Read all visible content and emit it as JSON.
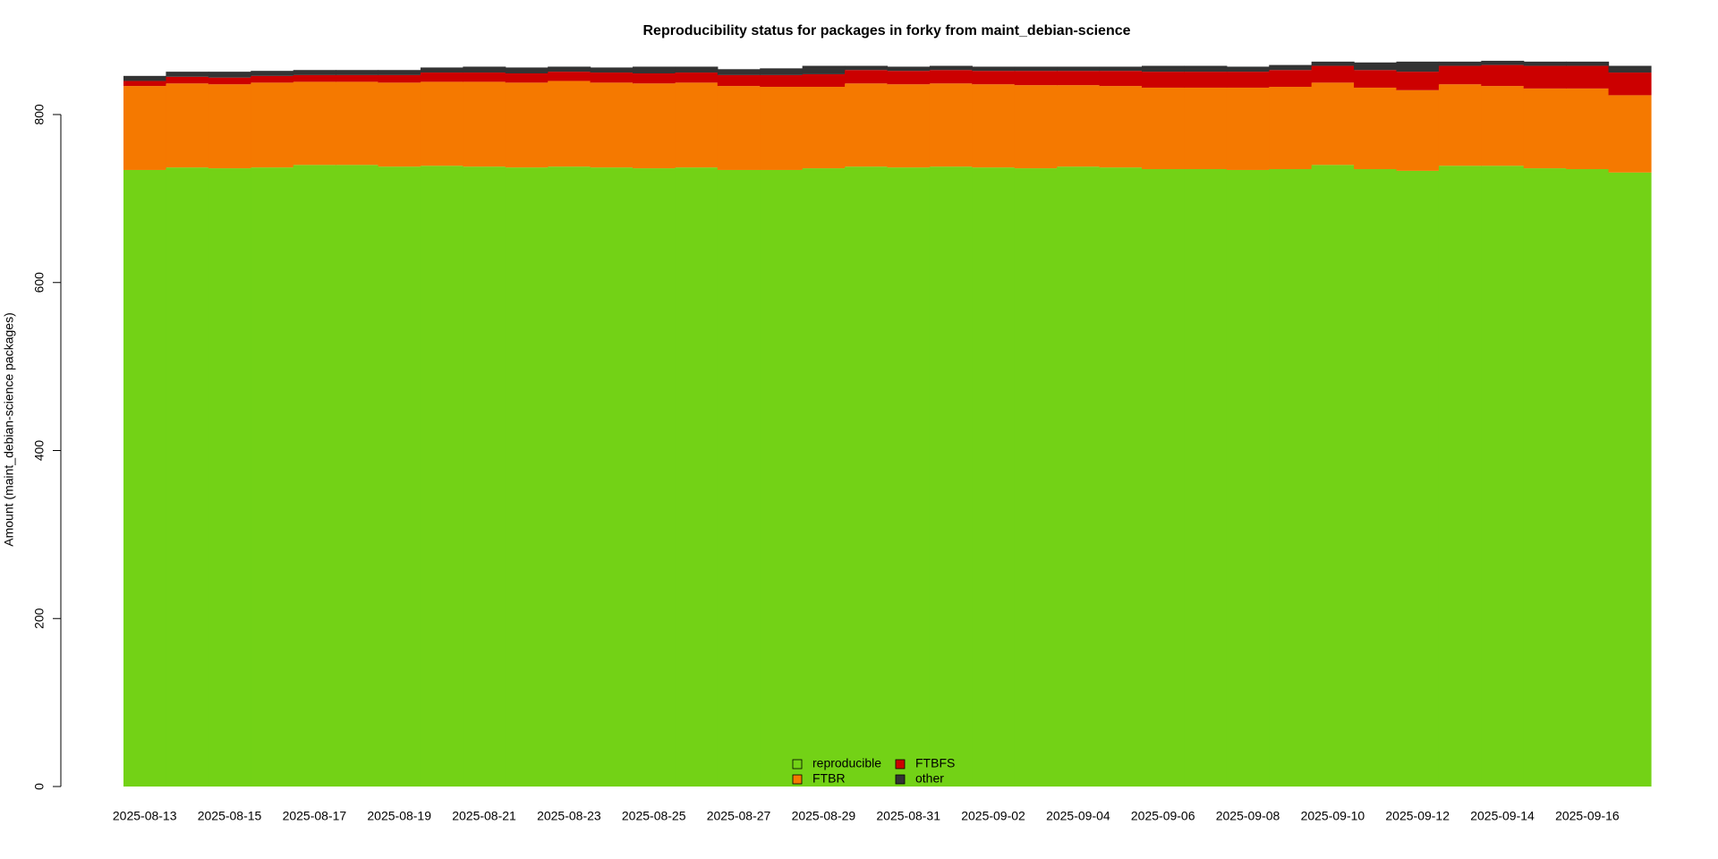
{
  "chart_data": {
    "type": "stacked-step-area",
    "title": "Reproducibility status for packages in forky from maint_debian-science",
    "y_label": "Amount (maint_debian-science packages)",
    "categories": [
      "2025-08-13",
      null,
      "2025-08-15",
      null,
      "2025-08-17",
      null,
      "2025-08-19",
      null,
      "2025-08-21",
      null,
      "2025-08-23",
      null,
      "2025-08-25",
      null,
      "2025-08-27",
      null,
      "2025-08-29",
      null,
      "2025-08-31",
      null,
      "2025-09-02",
      null,
      "2025-09-04",
      null,
      "2025-09-06",
      null,
      "2025-09-08",
      null,
      "2025-09-10",
      null,
      "2025-09-12",
      null,
      "2025-09-14",
      null,
      "2025-09-16",
      null
    ],
    "series": [
      {
        "name": "reproducible",
        "color": "#73d216",
        "values": [
          734,
          737,
          736,
          737,
          740,
          740,
          738,
          739,
          738,
          737,
          738,
          737,
          736,
          737,
          734,
          734,
          736,
          738,
          737,
          738,
          737,
          736,
          738,
          737,
          735,
          735,
          734,
          735,
          740,
          735,
          733,
          739,
          739,
          736,
          735,
          731
        ]
      },
      {
        "name": "FTBR",
        "color": "#f57900",
        "values": [
          100,
          100,
          100,
          101,
          99,
          99,
          100,
          100,
          101,
          101,
          102,
          101,
          101,
          101,
          100,
          99,
          97,
          99,
          99,
          99,
          99,
          99,
          97,
          97,
          97,
          97,
          98,
          98,
          98,
          97,
          96,
          97,
          95,
          95,
          96,
          92
        ]
      },
      {
        "name": "FTBFS",
        "color": "#cc0000",
        "values": [
          6,
          8,
          8,
          8,
          8,
          8,
          9,
          11,
          11,
          11,
          11,
          12,
          12,
          12,
          13,
          14,
          15,
          16,
          16,
          16,
          16,
          17,
          17,
          18,
          19,
          19,
          19,
          20,
          20,
          21,
          22,
          22,
          25,
          27,
          27,
          27
        ]
      },
      {
        "name": "other",
        "color": "#333333",
        "values": [
          6,
          6,
          7,
          6,
          6,
          6,
          6,
          6,
          7,
          7,
          6,
          6,
          8,
          7,
          7,
          8,
          10,
          5,
          5,
          5,
          5,
          5,
          5,
          5,
          7,
          7,
          6,
          6,
          5,
          9,
          12,
          5,
          5,
          5,
          5,
          8
        ]
      }
    ],
    "ylim": [
      0,
      800
    ],
    "yticks": [
      0,
      200,
      400,
      600,
      800
    ],
    "legend": "bottom"
  }
}
